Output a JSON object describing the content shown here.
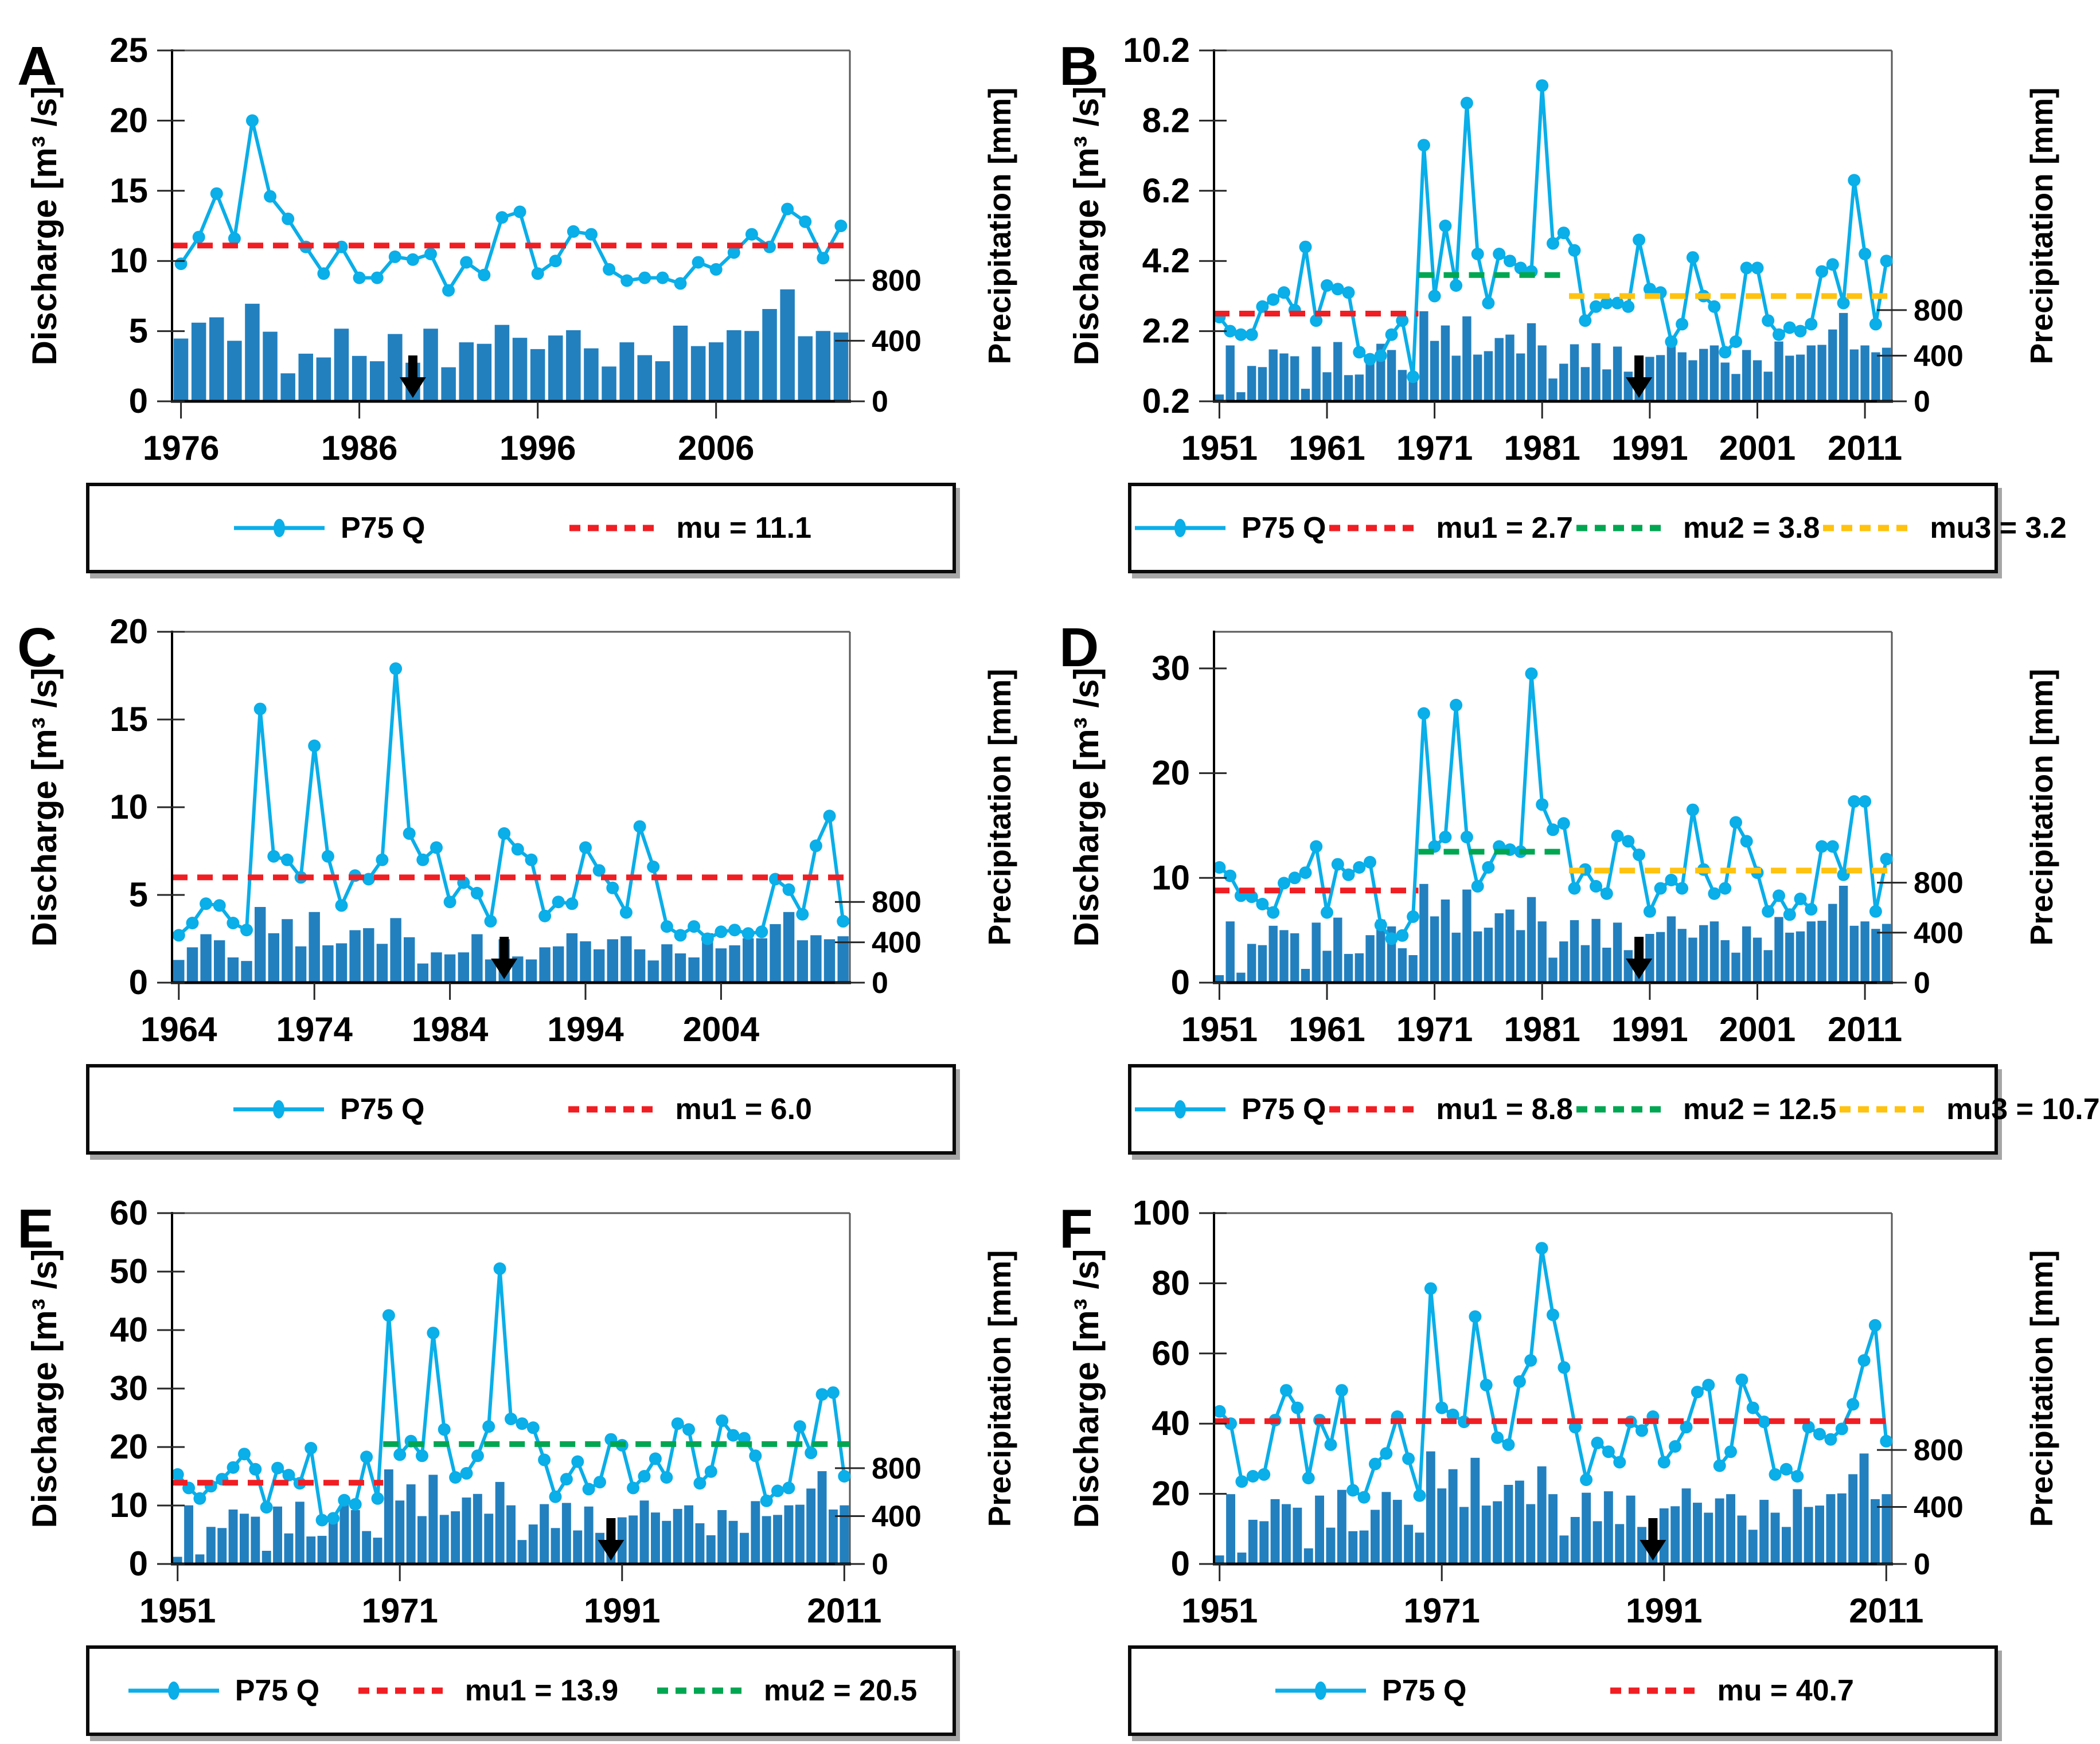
{
  "figure": {
    "panel_letters": [
      "A",
      "B",
      "C",
      "D",
      "E",
      "F"
    ],
    "series_label": "P75 Q"
  },
  "colors": {
    "line": "#0aaee8",
    "bar": "#2280bf",
    "mu_red": "#f01e23",
    "mu_green": "#00a651",
    "mu_yellow": "#ffc20e",
    "axis": "#000000",
    "frame": "#595959"
  },
  "chart_data": [
    {
      "type": "line+bar",
      "letter": "A",
      "ylabel": "Discharge [m³ /s]",
      "ylabel_right": "Precipitation [mm]",
      "ymin": 0,
      "ymax": 25,
      "yticks": [
        0,
        5,
        10,
        15,
        20,
        25
      ],
      "xticks": [
        1976,
        1986,
        1996,
        2006
      ],
      "right_ticks": [
        800,
        400,
        0
      ],
      "precip_800_frac": 0.345,
      "year_start": 1976,
      "arrow_year": 1989,
      "q": [
        9.8,
        11.7,
        14.8,
        11.6,
        20.0,
        14.6,
        13.0,
        11.0,
        9.1,
        11.0,
        8.8,
        8.8,
        10.3,
        10.1,
        10.5,
        7.9,
        9.9,
        9.0,
        13.1,
        13.5,
        9.1,
        10.0,
        12.1,
        11.9,
        9.4,
        8.6,
        8.8,
        8.8,
        8.4,
        9.9,
        9.4,
        10.6,
        11.9,
        11.0,
        13.7,
        12.8,
        10.2,
        12.5
      ],
      "precip_mm": [
        415,
        520,
        555,
        400,
        645,
        460,
        185,
        315,
        290,
        480,
        300,
        265,
        445,
        255,
        480,
        225,
        390,
        380,
        505,
        420,
        345,
        435,
        470,
        350,
        230,
        390,
        305,
        265,
        500,
        365,
        390,
        470,
        465,
        610,
        740,
        430,
        465,
        455
      ],
      "mu_lines": [
        {
          "label": "mu = 11.1",
          "value": 11.1,
          "color": "mu_red",
          "from": 1976,
          "to": 2013
        }
      ],
      "legend": [
        {
          "label": "P75 Q",
          "sample": "line"
        },
        {
          "label": "mu = 11.1",
          "sample": "dash",
          "color": "mu_red"
        }
      ]
    },
    {
      "type": "line+bar",
      "letter": "B",
      "ylabel": "Discharge [m³ /s]",
      "ylabel_right": "Precipitation [mm]",
      "ymin": 0.2,
      "ymax": 10.2,
      "yticks": [
        0.2,
        2.2,
        4.2,
        6.2,
        8.2,
        10.2
      ],
      "xticks": [
        1951,
        1961,
        1971,
        1981,
        1991,
        2001,
        2011
      ],
      "right_ticks": [
        800,
        400,
        0
      ],
      "precip_800_frac": 0.26,
      "year_start": 1951,
      "arrow_year": 1990,
      "q": [
        2.6,
        2.2,
        2.1,
        2.1,
        2.9,
        3.1,
        3.3,
        2.8,
        4.6,
        2.5,
        3.5,
        3.4,
        3.3,
        1.6,
        1.4,
        1.5,
        2.1,
        2.5,
        0.9,
        7.5,
        3.2,
        5.2,
        3.5,
        8.7,
        4.4,
        3.0,
        4.4,
        4.2,
        4.0,
        3.9,
        9.2,
        4.7,
        5.0,
        4.5,
        2.5,
        2.9,
        3.0,
        3.0,
        2.9,
        4.8,
        3.4,
        3.3,
        1.9,
        2.4,
        4.3,
        3.2,
        2.9,
        1.6,
        1.9,
        4.0,
        4.0,
        2.5,
        2.1,
        2.3,
        2.2,
        2.4,
        3.9,
        4.1,
        3.0,
        6.5,
        4.4,
        2.4,
        4.2
      ],
      "precip_mm": [
        60,
        490,
        80,
        310,
        300,
        455,
        420,
        395,
        110,
        480,
        255,
        520,
        230,
        235,
        380,
        505,
        450,
        275,
        220,
        790,
        530,
        665,
        400,
        745,
        410,
        440,
        555,
        585,
        420,
        685,
        490,
        200,
        330,
        500,
        300,
        510,
        280,
        480,
        260,
        255,
        390,
        405,
        530,
        430,
        360,
        460,
        490,
        340,
        240,
        450,
        360,
        260,
        525,
        400,
        410,
        490,
        495,
        630,
        775,
        455,
        490,
        430,
        470
      ],
      "mu_lines": [
        {
          "label": "mu1 = 2.7",
          "value": 2.7,
          "color": "mu_red",
          "from": 1951,
          "to": 1969
        },
        {
          "label": "mu2 = 3.8",
          "value": 3.8,
          "color": "mu_green",
          "from": 1970,
          "to": 1983
        },
        {
          "label": "mu3 = 3.2",
          "value": 3.2,
          "color": "mu_yellow",
          "from": 1984,
          "to": 2013
        }
      ],
      "legend": [
        {
          "label": "P75 Q",
          "sample": "line"
        },
        {
          "label": "mu1 = 2.7",
          "sample": "dash",
          "color": "mu_red"
        },
        {
          "label": "mu2 = 3.8",
          "sample": "dash",
          "color": "mu_green"
        },
        {
          "label": "mu3 = 3.2",
          "sample": "dash",
          "color": "mu_yellow"
        }
      ]
    },
    {
      "type": "line+bar",
      "letter": "C",
      "ylabel": "Discharge [m³ /s]",
      "ylabel_right": "Precipitation [mm]",
      "ymin": 0,
      "ymax": 20,
      "yticks": [
        0,
        5,
        10,
        15,
        20
      ],
      "xticks": [
        1964,
        1974,
        1984,
        1994,
        2004
      ],
      "right_ticks": [
        800,
        400,
        0
      ],
      "precip_800_frac": 0.23,
      "year_start": 1964,
      "arrow_year": 1988,
      "q": [
        2.7,
        3.4,
        4.5,
        4.4,
        3.4,
        3.0,
        15.6,
        7.2,
        7.0,
        6.0,
        13.5,
        7.2,
        4.4,
        6.1,
        5.9,
        7.0,
        17.9,
        8.5,
        7.0,
        7.7,
        4.6,
        5.7,
        5.1,
        3.5,
        8.5,
        7.6,
        7.0,
        3.8,
        4.6,
        4.5,
        7.7,
        6.4,
        5.4,
        4.0,
        8.9,
        6.6,
        3.2,
        2.7,
        3.2,
        2.5,
        2.9,
        3.0,
        2.8,
        2.9,
        5.9,
        5.3,
        3.9,
        7.8,
        9.5,
        3.5
      ],
      "precip_mm": [
        225,
        350,
        480,
        420,
        250,
        215,
        750,
        490,
        630,
        360,
        700,
        370,
        390,
        520,
        540,
        385,
        640,
        450,
        190,
        300,
        280,
        300,
        480,
        230,
        430,
        260,
        230,
        350,
        360,
        490,
        410,
        330,
        430,
        460,
        330,
        220,
        380,
        290,
        250,
        490,
        340,
        370,
        440,
        440,
        580,
        700,
        420,
        470,
        430,
        460
      ],
      "mu_lines": [
        {
          "label": "mu1 = 6.0",
          "value": 6.0,
          "color": "mu_red",
          "from": 1964,
          "to": 2013
        }
      ],
      "legend": [
        {
          "label": "P75 Q",
          "sample": "line"
        },
        {
          "label": "mu1 = 6.0",
          "sample": "dash",
          "color": "mu_red"
        }
      ]
    },
    {
      "type": "line+bar",
      "letter": "D",
      "ylabel": "Discharge [m³ /s]",
      "ylabel_right": "Precipitation [mm]",
      "ymin": 0,
      "ymax": 33.5,
      "yticks": [
        0,
        10,
        20,
        30
      ],
      "xticks": [
        1951,
        1961,
        1971,
        1981,
        1991,
        2001,
        2011
      ],
      "right_ticks": [
        800,
        400,
        0
      ],
      "precip_800_frac": 0.285,
      "year_start": 1951,
      "arrow_year": 1990,
      "q": [
        11.0,
        10.2,
        8.3,
        8.2,
        7.5,
        6.7,
        9.5,
        10.0,
        10.5,
        13.0,
        6.7,
        11.3,
        10.3,
        11.0,
        11.5,
        5.5,
        4.2,
        4.5,
        6.3,
        25.7,
        13.0,
        13.9,
        26.5,
        13.9,
        9.2,
        11.0,
        13.0,
        12.7,
        12.5,
        29.5,
        17.0,
        14.6,
        15.2,
        9.0,
        10.8,
        9.2,
        8.5,
        14.0,
        13.5,
        12.2,
        6.8,
        9.0,
        9.8,
        9.0,
        16.5,
        10.8,
        8.5,
        9.0,
        15.3,
        13.5,
        10.5,
        6.8,
        8.3,
        6.5,
        8.0,
        7.0,
        13.0,
        13.0,
        10.3,
        17.3,
        17.3,
        6.8,
        11.8
      ],
      "precip_mm": [
        60,
        490,
        80,
        310,
        300,
        455,
        420,
        395,
        110,
        480,
        255,
        520,
        230,
        235,
        380,
        505,
        450,
        275,
        220,
        790,
        530,
        665,
        400,
        745,
        410,
        440,
        555,
        585,
        420,
        685,
        490,
        200,
        330,
        500,
        300,
        510,
        280,
        480,
        260,
        255,
        390,
        405,
        530,
        430,
        360,
        460,
        490,
        340,
        240,
        450,
        360,
        260,
        525,
        400,
        410,
        490,
        495,
        630,
        775,
        455,
        490,
        430,
        470
      ],
      "mu_lines": [
        {
          "label": "mu1 = 8.8",
          "value": 8.8,
          "color": "mu_red",
          "from": 1951,
          "to": 1969
        },
        {
          "label": "mu2 = 12.5",
          "value": 12.5,
          "color": "mu_green",
          "from": 1970,
          "to": 1983
        },
        {
          "label": "mu3 = 10.7",
          "value": 10.7,
          "color": "mu_yellow",
          "from": 1984,
          "to": 2013
        }
      ],
      "legend": [
        {
          "label": "P75 Q",
          "sample": "line"
        },
        {
          "label": "mu1 = 8.8",
          "sample": "dash",
          "color": "mu_red"
        },
        {
          "label": "mu2 = 12.5",
          "sample": "dash",
          "color": "mu_green"
        },
        {
          "label": "mu3 = 10.7",
          "sample": "dash",
          "color": "mu_yellow"
        }
      ]
    },
    {
      "type": "line+bar",
      "letter": "E",
      "ylabel": "Discharge [m³ /s]",
      "ylabel_right": "Precipitation [mm]",
      "ymin": 0,
      "ymax": 60,
      "yticks": [
        0,
        10,
        20,
        30,
        40,
        50,
        60
      ],
      "xticks": [
        1951,
        1971,
        1991,
        2011
      ],
      "right_ticks": [
        800,
        400,
        0
      ],
      "precip_800_frac": 0.273,
      "year_start": 1951,
      "arrow_year": 1990,
      "q": [
        15.3,
        13.0,
        11.2,
        13.3,
        14.5,
        16.5,
        18.8,
        16.2,
        9.7,
        16.4,
        15.2,
        13.8,
        19.8,
        7.5,
        7.8,
        10.9,
        10.2,
        18.3,
        11.2,
        42.5,
        18.7,
        21.0,
        18.5,
        39.5,
        23.0,
        14.8,
        15.5,
        18.5,
        23.5,
        50.5,
        24.8,
        24.0,
        23.3,
        17.8,
        11.5,
        14.5,
        17.5,
        12.8,
        14.0,
        21.3,
        20.3,
        13.0,
        15.0,
        18.0,
        14.8,
        24.0,
        23.0,
        13.8,
        15.8,
        24.5,
        22.0,
        21.5,
        18.5,
        10.8,
        12.5,
        13.0,
        23.5,
        19.0,
        29.0,
        29.3,
        15.0
      ],
      "precip_mm": [
        60,
        490,
        80,
        310,
        300,
        455,
        420,
        395,
        110,
        480,
        255,
        520,
        230,
        235,
        380,
        505,
        450,
        275,
        220,
        790,
        530,
        665,
        400,
        745,
        410,
        440,
        555,
        585,
        420,
        685,
        490,
        200,
        330,
        500,
        300,
        510,
        280,
        480,
        260,
        255,
        390,
        405,
        530,
        430,
        360,
        460,
        490,
        340,
        240,
        450,
        360,
        260,
        525,
        400,
        410,
        490,
        495,
        630,
        775,
        455,
        490
      ],
      "mu_lines": [
        {
          "label": "mu1 = 13.9",
          "value": 13.9,
          "color": "mu_red",
          "from": 1951,
          "to": 1969
        },
        {
          "label": "mu2 = 20.5",
          "value": 20.5,
          "color": "mu_green",
          "from": 1970,
          "to": 2011
        }
      ],
      "legend": [
        {
          "label": "P75 Q",
          "sample": "line"
        },
        {
          "label": "mu1 = 13.9",
          "sample": "dash",
          "color": "mu_red"
        },
        {
          "label": "mu2 = 20.5",
          "sample": "dash",
          "color": "mu_green"
        }
      ]
    },
    {
      "type": "line+bar",
      "letter": "F",
      "ylabel": "Discharge [m³ /s]",
      "ylabel_right": "Precipitation [mm]",
      "ymin": 0,
      "ymax": 100,
      "yticks": [
        0,
        20,
        40,
        60,
        80,
        100
      ],
      "xticks": [
        1951,
        1971,
        1991,
        2011
      ],
      "right_ticks": [
        800,
        400,
        0
      ],
      "precip_800_frac": 0.325,
      "year_start": 1951,
      "arrow_year": 1990,
      "q": [
        43.5,
        40.0,
        23.5,
        25.0,
        25.5,
        41.0,
        49.5,
        44.5,
        24.5,
        41.0,
        34.0,
        49.5,
        21.0,
        19.0,
        28.5,
        31.5,
        42.0,
        30.0,
        19.5,
        78.5,
        44.5,
        42.5,
        40.5,
        70.5,
        51.0,
        36.0,
        34.0,
        52.0,
        58.0,
        90.0,
        71.0,
        56.0,
        39.0,
        24.0,
        34.5,
        32.0,
        29.0,
        40.5,
        38.0,
        42.0,
        29.0,
        33.5,
        39.0,
        49.0,
        51.0,
        28.0,
        32.0,
        52.5,
        44.5,
        40.5,
        25.5,
        27.0,
        25.0,
        39.0,
        37.0,
        35.5,
        38.5,
        45.5,
        58.0,
        68.0,
        35.0
      ],
      "precip_mm": [
        60,
        490,
        80,
        310,
        300,
        455,
        420,
        395,
        110,
        480,
        255,
        520,
        230,
        235,
        380,
        505,
        450,
        275,
        220,
        790,
        530,
        665,
        400,
        745,
        410,
        440,
        555,
        585,
        420,
        685,
        490,
        200,
        330,
        500,
        300,
        510,
        280,
        480,
        260,
        255,
        390,
        405,
        530,
        430,
        360,
        460,
        490,
        340,
        240,
        450,
        360,
        260,
        525,
        400,
        410,
        490,
        495,
        630,
        775,
        455,
        490
      ],
      "mu_lines": [
        {
          "label": "mu = 40.7",
          "value": 40.7,
          "color": "mu_red",
          "from": 1951,
          "to": 2011
        }
      ],
      "legend": [
        {
          "label": "P75 Q",
          "sample": "line"
        },
        {
          "label": "mu = 40.7",
          "sample": "dash",
          "color": "mu_red"
        }
      ]
    }
  ]
}
